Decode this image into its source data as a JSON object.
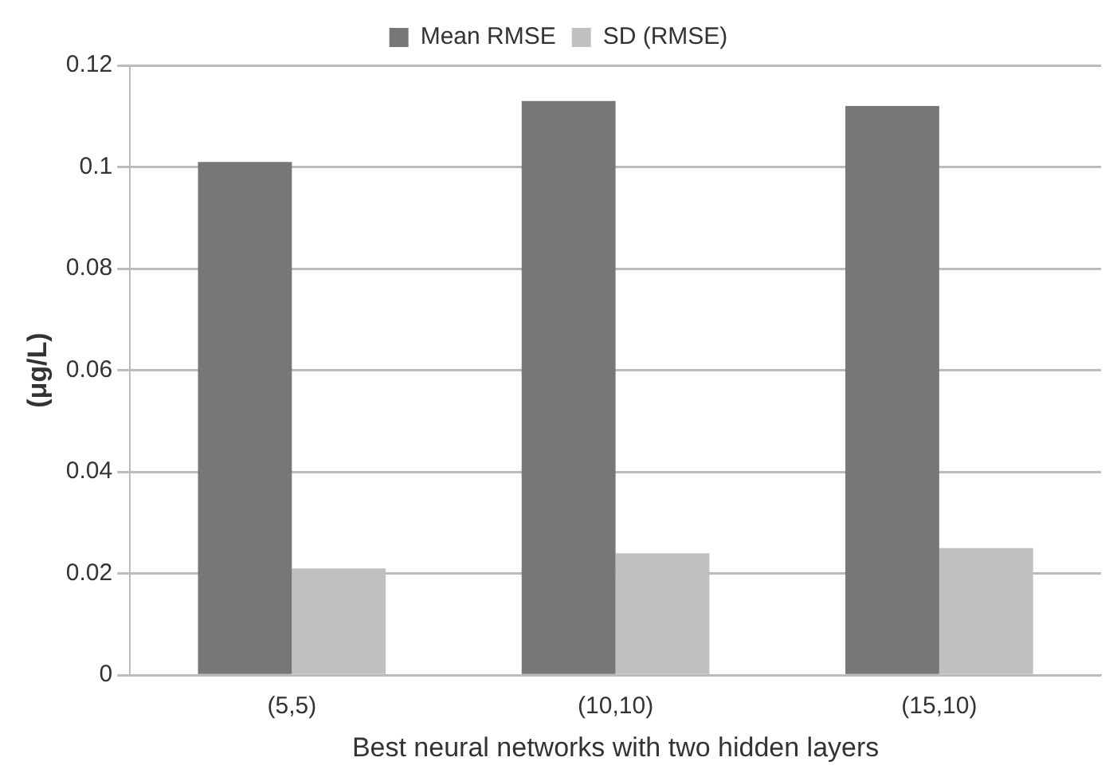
{
  "chart_data": {
    "type": "bar",
    "categories": [
      "(5,5)",
      "(10,10)",
      "(15,10)"
    ],
    "series": [
      {
        "name": "Mean RMSE",
        "color": "#777777",
        "values": [
          0.101,
          0.113,
          0.112
        ]
      },
      {
        "name": "SD (RMSE)",
        "color": "#c0c0c0",
        "values": [
          0.021,
          0.024,
          0.025
        ]
      }
    ],
    "ylabel": "(μg/L)",
    "xlabel": "Best neural networks with two hidden layers",
    "ylim": [
      0,
      0.12
    ],
    "yticks": [
      0,
      0.02,
      0.04,
      0.06,
      0.08,
      0.1,
      0.12
    ],
    "grid": "y",
    "legend": "top"
  }
}
